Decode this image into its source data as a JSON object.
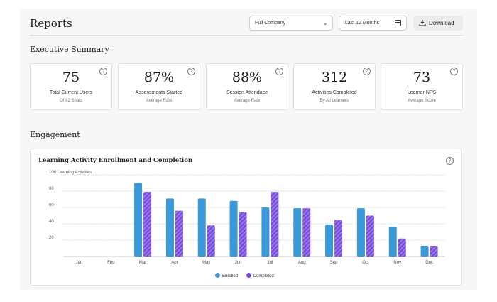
{
  "header": {
    "title": "Reports",
    "company_select": "Full Company",
    "date_select": "Last 12 Months",
    "download_label": "Download"
  },
  "executive_summary": {
    "title": "Executive Summary",
    "cards": [
      {
        "value": "75",
        "label": "Total Current Users",
        "sub": "Of 82 Seats"
      },
      {
        "value": "87%",
        "label": "Assessments Started",
        "sub": "Average Rate"
      },
      {
        "value": "88%",
        "label": "Session Attendace",
        "sub": "Average Rate"
      },
      {
        "value": "312",
        "label": "Activities Completed",
        "sub": "By All Learners"
      },
      {
        "value": "73",
        "label": "Learner NPS",
        "sub": "Average Score"
      }
    ]
  },
  "engagement": {
    "title": "Engagement",
    "help": "?"
  },
  "colors": {
    "enrolled": "#3a9ad9",
    "completed": "#7b4fe0"
  },
  "chart_data": {
    "type": "bar",
    "title": "Learning Activity Enrollment and Completion",
    "ylabel": "",
    "ylim": [
      0,
      100
    ],
    "yticks": [
      20,
      40,
      60,
      80
    ],
    "ytick_top_label": "100 Learning Activities",
    "categories": [
      "Jan",
      "Feb",
      "Mar",
      "Apr",
      "May",
      "Jun",
      "Jul",
      "Aug",
      "Sep",
      "Oct",
      "Nov",
      "Dec"
    ],
    "series": [
      {
        "name": "Enrolled",
        "values": [
          0,
          0,
          90,
          71,
          71,
          68,
          60,
          59,
          39,
          59,
          36,
          13
        ]
      },
      {
        "name": "Completed",
        "values": [
          0,
          0,
          79,
          56,
          38,
          54,
          79,
          59,
          45,
          50,
          22,
          13
        ]
      }
    ],
    "grid": true,
    "legend": "bottom-center"
  }
}
